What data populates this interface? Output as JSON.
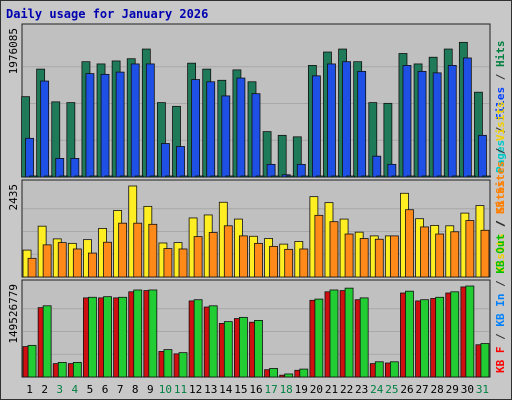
{
  "chart_data": {
    "type": "bar",
    "title": "Daily usage for January 2026",
    "x": [
      "1",
      "2",
      "3",
      "4",
      "5",
      "6",
      "7",
      "8",
      "9",
      "10",
      "11",
      "12",
      "13",
      "14",
      "15",
      "16",
      "17",
      "18",
      "19",
      "20",
      "21",
      "22",
      "23",
      "24",
      "25",
      "26",
      "27",
      "28",
      "29",
      "30",
      "31"
    ],
    "weekend_days": [
      "3",
      "4",
      "10",
      "11",
      "17",
      "18",
      "24",
      "25",
      "31"
    ],
    "panels": [
      {
        "id": "hits-files-pages",
        "ymax_label": "1976085",
        "ymax": 1976085,
        "legend": [
          "Pages",
          "/",
          "Files",
          "/",
          "Hits"
        ],
        "legend_colors": [
          "#00c8c8",
          "#303030",
          "#0040ff",
          "#303030",
          "#008040"
        ],
        "series": [
          {
            "name": "Hits",
            "color": "#1f7a5a",
            "values": [
              1080000,
              1450000,
              1010000,
              1000000,
              1550000,
              1520000,
              1560000,
              1590000,
              1720000,
              1000000,
              950000,
              1530000,
              1450000,
              1300000,
              1440000,
              1280000,
              610000,
              560000,
              540000,
              1500000,
              1680000,
              1720000,
              1550000,
              1000000,
              990000,
              1660000,
              1520000,
              1610000,
              1720000,
              1810000,
              1140000
            ]
          },
          {
            "name": "Files",
            "color": "#1e50e6",
            "values": [
              520000,
              1290000,
              250000,
              250000,
              1390000,
              1380000,
              1410000,
              1520000,
              1520000,
              450000,
              410000,
              1310000,
              1280000,
              1090000,
              1330000,
              1120000,
              170000,
              30000,
              170000,
              1360000,
              1520000,
              1550000,
              1420000,
              280000,
              170000,
              1500000,
              1420000,
              1400000,
              1500000,
              1600000,
              560000
            ]
          },
          {
            "name": "Pages",
            "color": "#00c8c8",
            "values": [
              3000,
              4000,
              2000,
              2000,
              4000,
              4000,
              4000,
              5000,
              5000,
              2000,
              2000,
              4000,
              4000,
              3000,
              4000,
              3000,
              1000,
              1000,
              1000,
              4000,
              5000,
              5000,
              4000,
              2000,
              1000,
              5000,
              4000,
              4000,
              5000,
              5000,
              2000
            ]
          }
        ]
      },
      {
        "id": "visits-sites",
        "ymax_label": "2435",
        "ymax": 2435,
        "legend": [
          "Visits",
          "/",
          "Sites"
        ],
        "legend_colors": [
          "#f0d000",
          "#303030",
          "#ff8000"
        ],
        "series": [
          {
            "name": "Visits",
            "color": "#ffee22",
            "values": [
              720,
              1360,
              1020,
              900,
              1000,
              1300,
              1780,
              2435,
              1890,
              910,
              920,
              1580,
              1660,
              2000,
              1550,
              1090,
              1030,
              880,
              950,
              2150,
              1990,
              1550,
              1200,
              1100,
              1100,
              2240,
              1560,
              1380,
              1370,
              1710,
              1910
            ]
          },
          {
            "name": "Sites",
            "color": "#ff8a1a",
            "values": [
              500,
              860,
              920,
              750,
              640,
              930,
              1440,
              1440,
              1410,
              760,
              750,
              1080,
              1190,
              1370,
              1100,
              900,
              820,
              740,
              750,
              1650,
              1480,
              1150,
              1030,
              1010,
              1100,
              1800,
              1340,
              1150,
              1210,
              1510,
              1250
            ]
          }
        ]
      },
      {
        "id": "kbytes",
        "ymax_label": "149526779",
        "ymax": 149526779,
        "legend": [
          "KB F",
          "/",
          "KB In",
          "/",
          "KB Out",
          "/",
          "KB Sites",
          "/",
          "Visits"
        ],
        "legend_colors": [
          "#ff0000",
          "#303030",
          "#0080ff",
          "#303030",
          "#00c000",
          "#303030",
          "#ff8000",
          "#303030",
          "#f0d000"
        ],
        "series": [
          {
            "name": "KB F",
            "color": "#d01010",
            "values": [
              50000000,
              114000000,
              22000000,
              22000000,
              130000000,
              130000000,
              130000000,
              140000000,
              142000000,
              42000000,
              38000000,
              125000000,
              115000000,
              88000000,
              96000000,
              90000000,
              12000000,
              3000000,
              11000000,
              126000000,
              140000000,
              142000000,
              127000000,
              22000000,
              23000000,
              138000000,
              125000000,
              129000000,
              138000000,
              148000000,
              53000000
            ]
          },
          {
            "name": "KB Out",
            "color": "#22cc33",
            "values": [
              52000000,
              117000000,
              24000000,
              24000000,
              131000000,
              132000000,
              131000000,
              143000000,
              143000000,
              45000000,
              40000000,
              127000000,
              117000000,
              91000000,
              98000000,
              93000000,
              14000000,
              5000000,
              13000000,
              128000000,
              143000000,
              146000000,
              130000000,
              25000000,
              25000000,
              141000000,
              127000000,
              131000000,
              140000000,
              149526779,
              55000000
            ]
          }
        ]
      }
    ]
  },
  "colors": {
    "background": "#c8c8c8",
    "plot_background": "#c0c0c0",
    "title": "#0000b0",
    "axis_text": "#000000",
    "weekend_text": "#008040"
  }
}
